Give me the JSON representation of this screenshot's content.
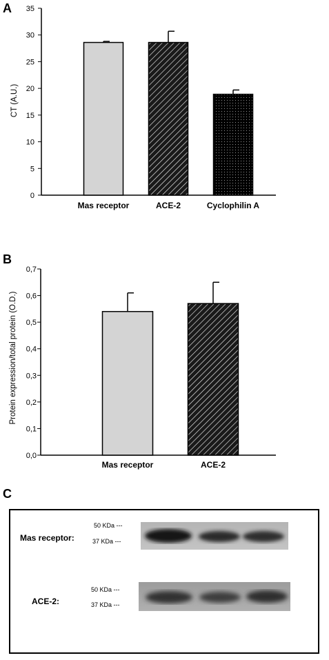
{
  "panels": {
    "a": {
      "letter": "A"
    },
    "b": {
      "letter": "B"
    },
    "c": {
      "letter": "C"
    }
  },
  "chart_data": [
    {
      "type": "bar",
      "panel": "A",
      "categories": [
        "Mas receptor",
        "ACE-2",
        "Cyclophilin A"
      ],
      "values": [
        28.6,
        28.6,
        18.9
      ],
      "errors": [
        0.2,
        2.1,
        0.8
      ],
      "patterns": [
        "solid-grey",
        "diagonal-hatch",
        "dots"
      ],
      "ylabel": "CT (A.U.)",
      "ylim": [
        0,
        35
      ],
      "yticks": [
        "0",
        "5",
        "10",
        "15",
        "20",
        "25",
        "30",
        "35"
      ],
      "grid": false
    },
    {
      "type": "bar",
      "panel": "B",
      "categories": [
        "Mas receptor",
        "ACE-2"
      ],
      "values": [
        0.54,
        0.57
      ],
      "errors": [
        0.07,
        0.08
      ],
      "patterns": [
        "solid-grey",
        "diagonal-hatch"
      ],
      "ylabel": "Protein expression/total protein (O.D.)",
      "ylim": [
        0,
        0.7
      ],
      "yticks": [
        "0,0",
        "0,1",
        "0,2",
        "0,3",
        "0,4",
        "0,5",
        "0,6",
        "0,7"
      ],
      "grid": false
    }
  ],
  "western_blot": {
    "rows": [
      {
        "label": "Mas receptor:",
        "marker_high": "50 KDa  ---",
        "marker_low": "37 KDa ---"
      },
      {
        "label": "ACE-2:",
        "marker_high": "50 KDa  ---",
        "marker_low": "37 KDa ---"
      }
    ]
  },
  "colors": {
    "grey_bar": "#d4d4d4",
    "ink": "#000000"
  }
}
